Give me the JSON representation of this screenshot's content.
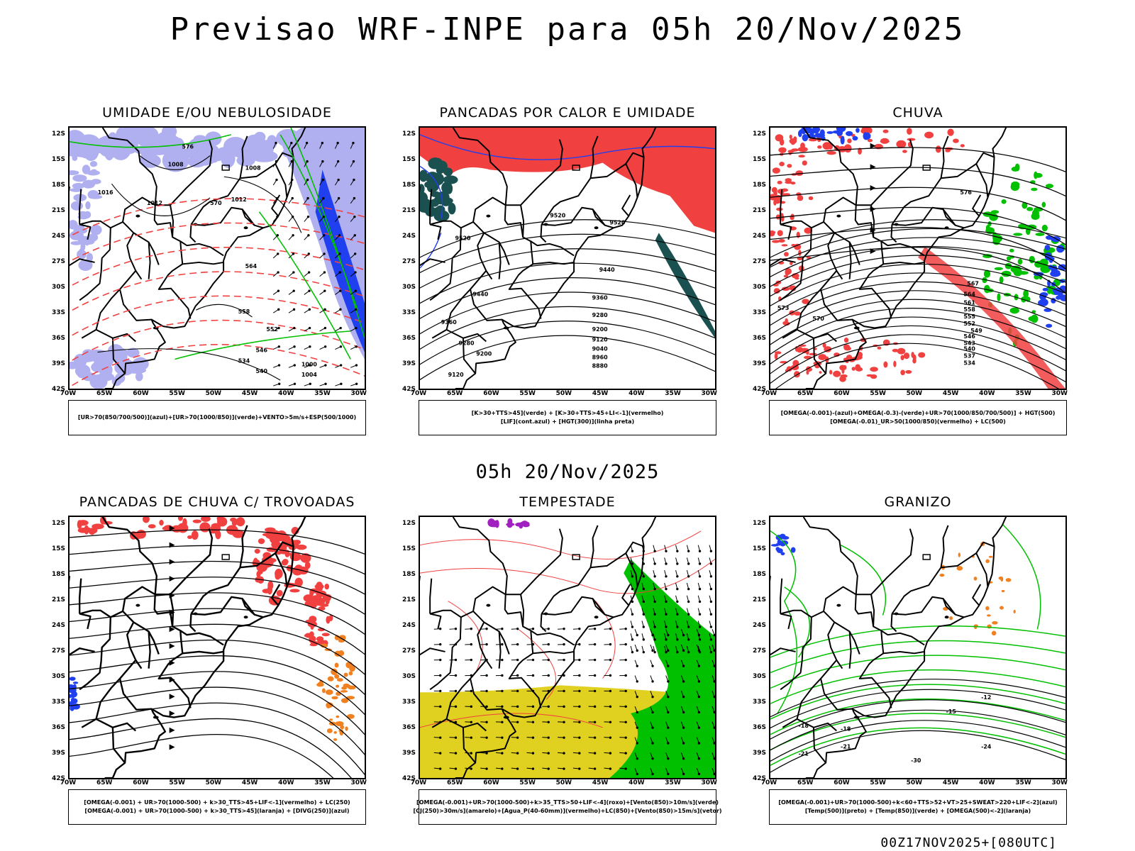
{
  "header": {
    "title": "Previsao WRF-INPE  para 05h 20/Nov/2025"
  },
  "subheader": {
    "title": "05h 20/Nov/2025"
  },
  "footer": {
    "text": "00Z17NOV2025+[080UTC]"
  },
  "axes": {
    "lat": [
      "12S",
      "15S",
      "18S",
      "21S",
      "24S",
      "27S",
      "30S",
      "33S",
      "36S",
      "39S",
      "42S"
    ],
    "lon": [
      "70W",
      "65W",
      "60W",
      "55W",
      "50W",
      "45W",
      "40W",
      "35W",
      "30W"
    ]
  },
  "panels": [
    {
      "title": "UMIDADE E/OU NEBULOSIDADE",
      "legend": [
        "[UR>70(850/700/500)](azul)+[UR>70(1000/850)](verde)+VENTO>5m/s+ESP(500/1000)"
      ],
      "labels": [
        "1008",
        "1008",
        "1012",
        "1012",
        "1004",
        "1000",
        "1016",
        "576",
        "570",
        "564",
        "558",
        "552",
        "546",
        "540",
        "534"
      ]
    },
    {
      "title": "PANCADAS POR CALOR E UMIDADE",
      "legend": [
        "[K>30+TTS>45](verde) + [K>30+TTS>45+LI<-1](vermelho)",
        "[LIF](cont.azul) + [HGT(300)](linha preta)"
      ],
      "labels": [
        "9520",
        "9520",
        "9520",
        "9440",
        "9440",
        "9360",
        "9360",
        "9280",
        "9280",
        "9200",
        "9200",
        "9120",
        "9040",
        "8960",
        "8880",
        "9120"
      ]
    },
    {
      "title": "CHUVA",
      "legend": [
        "[OMEGA(-0.001)-(azul)+OMEGA(-0.3)-(verde)+UR>70(1000/850/700/500)] + HGT(500)",
        "[OMEGA(-0.01)_UR>50(1000/850)(vermelho) + LC(500)"
      ],
      "labels": [
        "576",
        "573",
        "570",
        "567",
        "564",
        "561",
        "558",
        "555",
        "552",
        "549",
        "546",
        "543",
        "540",
        "537",
        "534"
      ]
    },
    {
      "title": "PANCADAS DE CHUVA C/ TROVOADAS",
      "legend": [
        "[OMEGA(-0.001) + UR>70(1000-500) + k>30_TTS>45+LIF<-1](vermelho) + LC(250)",
        "[OMEGA(-0.001) + UR>70(1000-500) + k>30_TTS>45](laranja) + [DIVG(250)](azul)"
      ],
      "labels": []
    },
    {
      "title": "TEMPESTADE",
      "legend": [
        "[OMEGA(-0.001)+UR>70(1000-500)+k>35_TTS>50+LIF<-4](roxo)+[Vento(850)>10m/s](verde)",
        "[CJ(250)>30m/s](amarelo)+[Agua_P(40-60mm)](vermelho)+LC(850)+[Vento(850)>15m/s](vetor)"
      ],
      "labels": []
    },
    {
      "title": "GRANIZO",
      "legend": [
        "[OMEGA(-0.001)+UR>70(1000-500)+k<60+TTS>52+VT>25+SWEAT>220+LIF<-2](azul)",
        "[Temp(500)](preto) + [Temp(850)](verde) + [OMEGA(500)<-2](laranja)"
      ],
      "labels": [
        "-12",
        "-15",
        "-18",
        "-21",
        "-24",
        "-18",
        "-21",
        "-30"
      ]
    }
  ],
  "colors": {
    "red": "#f04040",
    "green": "#00c000",
    "blue": "#2040f0",
    "lightblue": "#b0b0f0",
    "yellow": "#e0d020",
    "orange": "#f08020",
    "teal": "#1a5050"
  }
}
